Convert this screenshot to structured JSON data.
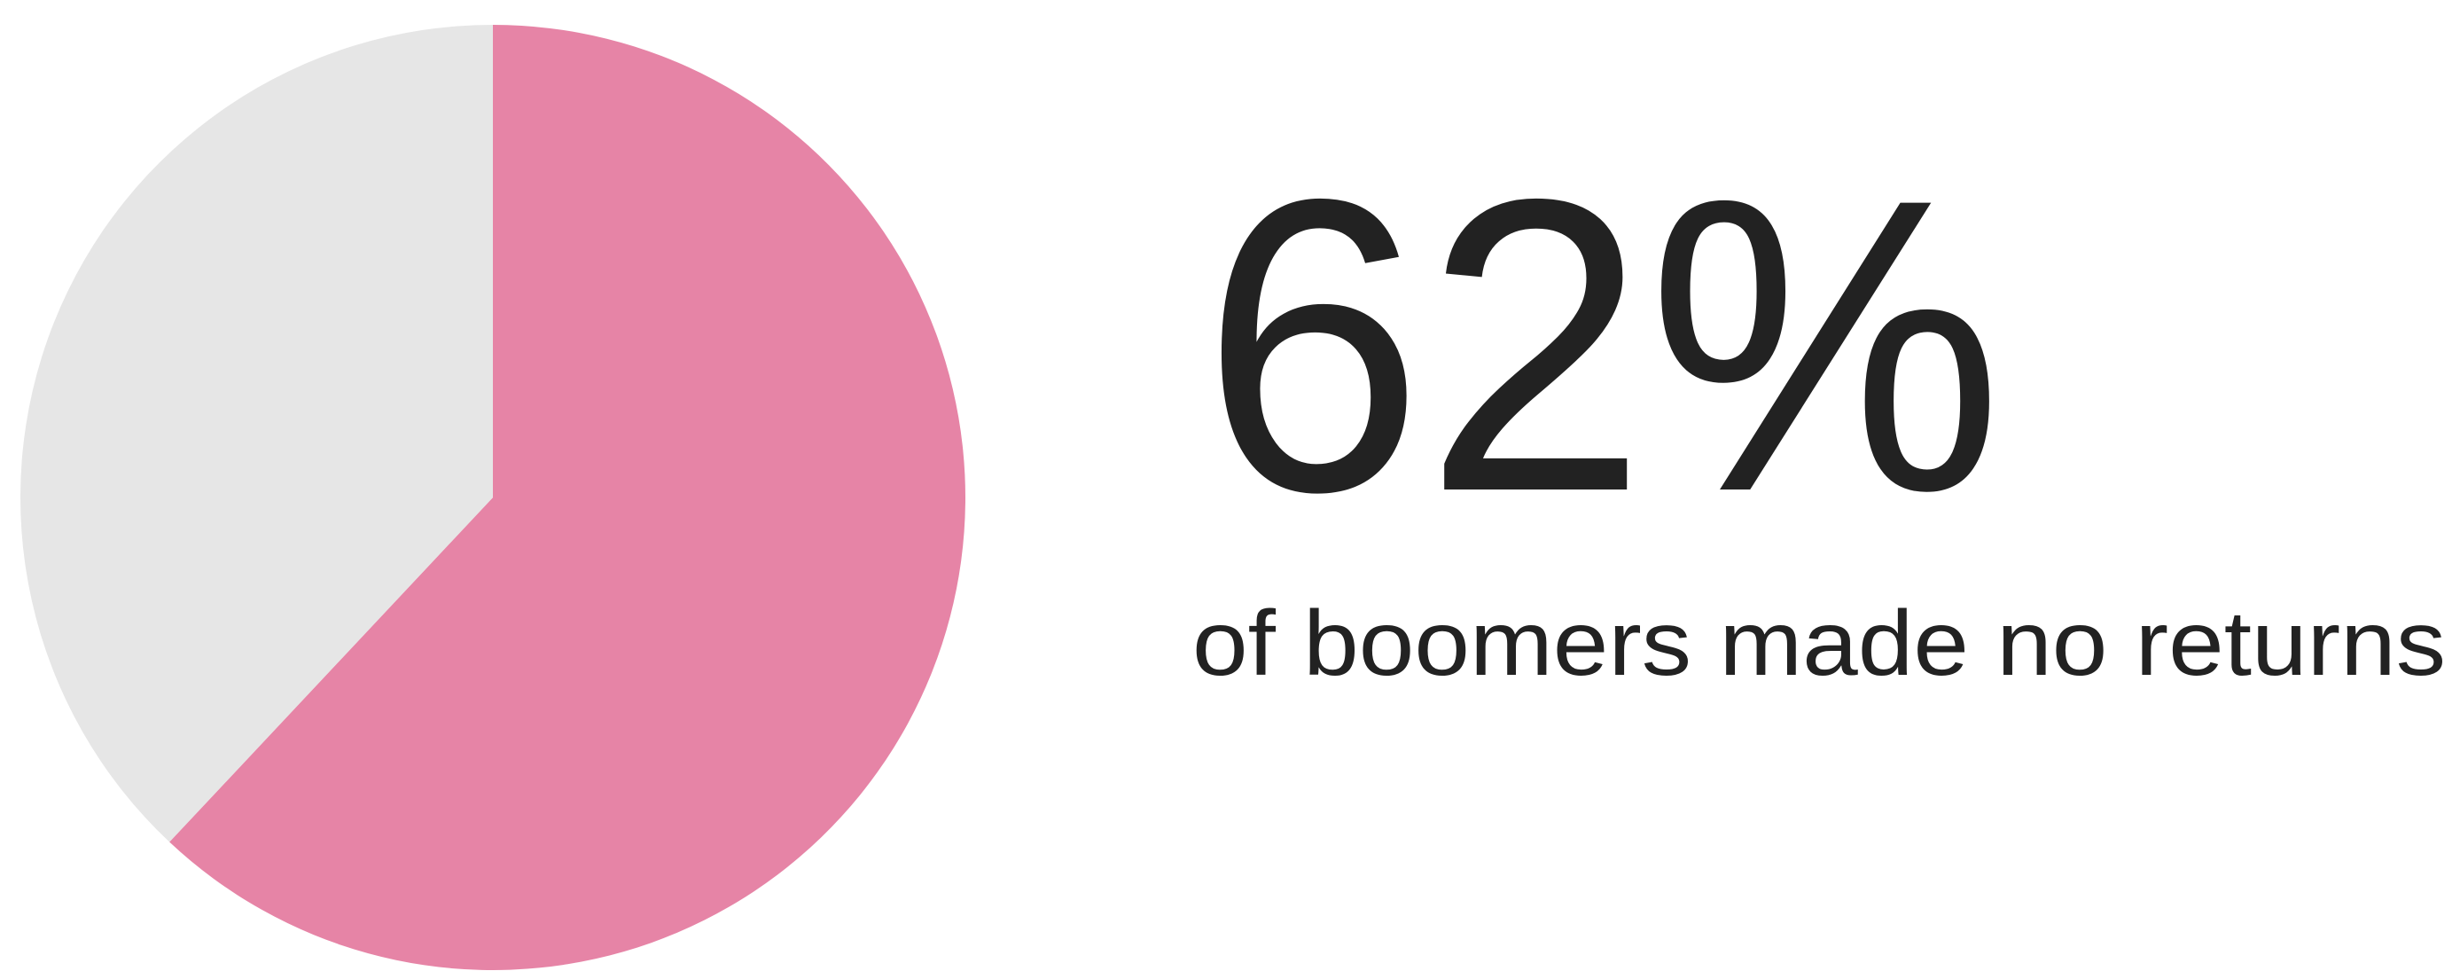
{
  "chart_data": {
    "type": "pie",
    "values": [
      62,
      38
    ],
    "colors": [
      "#e684a6",
      "#e6e6e6"
    ],
    "value_labels": [
      "62%",
      null
    ],
    "caption": "of boomers made no returns"
  }
}
